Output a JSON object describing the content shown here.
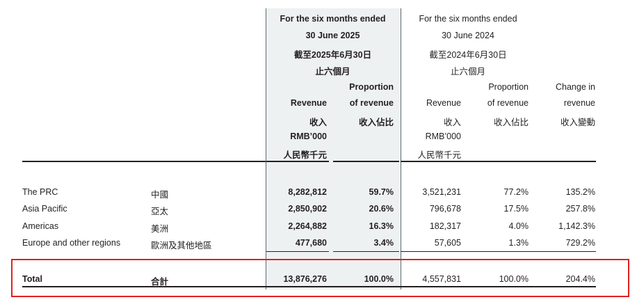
{
  "header_2025": {
    "line1": "For the six months ended",
    "line2": "30 June 2025",
    "line3": "截至2025年6月30日",
    "line4": "止六個月",
    "revenue_label": "Revenue",
    "revenue_zh": "收入",
    "revenue_unit": "RMB’000",
    "revenue_unit_zh": "人民幣千元",
    "proportion_l1": "Proportion",
    "proportion_l2": "of revenue",
    "proportion_zh": "收入佔比"
  },
  "header_2024": {
    "line1": "For the six months ended",
    "line2": "30 June 2024",
    "line3": "截至2024年6月30日",
    "line4": "止六個月",
    "revenue_label": "Revenue",
    "revenue_zh": "收入",
    "revenue_unit": "RMB’000",
    "revenue_unit_zh": "人民幣千元",
    "proportion_l1": "Proportion",
    "proportion_l2": "of revenue",
    "proportion_zh": "收入佔比",
    "change_l1": "Change in",
    "change_l2": "revenue",
    "change_zh": "收入變動"
  },
  "rows": [
    {
      "en": "The PRC",
      "zh": "中國",
      "rev_2025": "8,282,812",
      "prop_2025": "59.7%",
      "rev_2024": "3,521,231",
      "prop_2024": "77.2%",
      "change": "135.2%"
    },
    {
      "en": "Asia Pacific",
      "zh": "亞太",
      "rev_2025": "2,850,902",
      "prop_2025": "20.6%",
      "rev_2024": "796,678",
      "prop_2024": "17.5%",
      "change": "257.8%"
    },
    {
      "en": "Americas",
      "zh": "美洲",
      "rev_2025": "2,264,882",
      "prop_2025": "16.3%",
      "rev_2024": "182,317",
      "prop_2024": "4.0%",
      "change": "1,142.3%"
    },
    {
      "en": "Europe and other regions",
      "zh": "歐洲及其他地區",
      "rev_2025": "477,680",
      "prop_2025": "3.4%",
      "rev_2024": "57,605",
      "prop_2024": "1.3%",
      "change": "729.2%"
    }
  ],
  "total": {
    "en": "Total",
    "zh": "合計",
    "rev_2025": "13,876,276",
    "prop_2025": "100.0%",
    "rev_2024": "4,557,831",
    "prop_2024": "100.0%",
    "change": "204.4%"
  },
  "colors": {
    "highlight_box": "#e0201e",
    "shaded_column": "#eef1f2"
  }
}
